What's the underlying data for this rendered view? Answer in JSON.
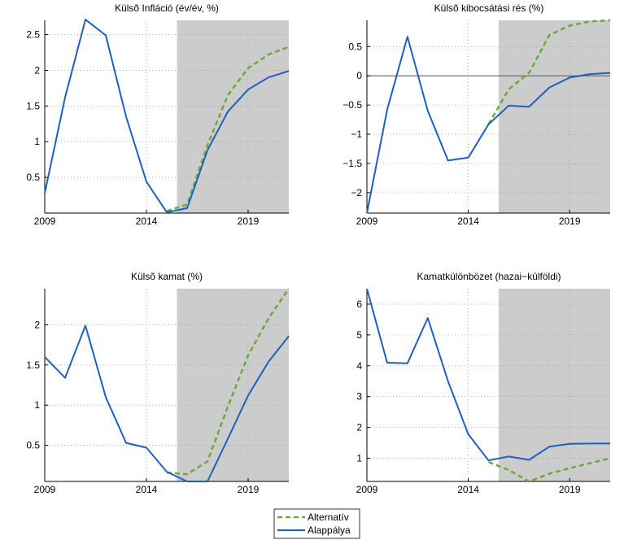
{
  "chart_data": [
    {
      "type": "line",
      "title": "Külsõ Infláció (év/év, %)",
      "xlim": [
        2009,
        2021
      ],
      "ylim": [
        0.0,
        2.7
      ],
      "xticks": [
        2009,
        2014,
        2019
      ],
      "yticks": [
        0.5,
        1,
        1.5,
        2,
        2.5
      ],
      "yticklabels": [
        "0.5",
        "1",
        "1.5",
        "2",
        "2.5"
      ],
      "forecast_start": 2015.5,
      "zero_line": false,
      "series": [
        {
          "name": "Alternatív",
          "color": "#6aaa3a",
          "dashed": true,
          "x": [
            2015,
            2016,
            2017,
            2018,
            2019,
            2020,
            2021
          ],
          "y": [
            0.03,
            0.12,
            0.95,
            1.65,
            2.03,
            2.22,
            2.33
          ]
        },
        {
          "name": "Alappálya",
          "color": "#1f5fbf",
          "dashed": false,
          "x": [
            2009,
            2010,
            2011,
            2012,
            2013,
            2014,
            2015,
            2016,
            2017,
            2018,
            2019,
            2020,
            2021
          ],
          "y": [
            0.28,
            1.62,
            2.71,
            2.49,
            1.35,
            0.44,
            0.01,
            0.07,
            0.88,
            1.42,
            1.73,
            1.9,
            1.99
          ]
        }
      ]
    },
    {
      "type": "line",
      "title": "Külsõ kibocsátási rés (%)",
      "xlim": [
        2009,
        2021
      ],
      "ylim": [
        -2.35,
        0.95
      ],
      "xticks": [
        2009,
        2014,
        2019
      ],
      "yticks": [
        -2,
        -1.5,
        -1,
        -0.5,
        0,
        0.5
      ],
      "yticklabels": [
        "−2",
        "−1.5",
        "−1",
        "−0.5",
        "0",
        "0.5"
      ],
      "forecast_start": 2015.5,
      "zero_line": true,
      "series": [
        {
          "name": "Alternatív",
          "color": "#6aaa3a",
          "dashed": true,
          "x": [
            2015,
            2016,
            2017,
            2018,
            2019,
            2020,
            2021
          ],
          "y": [
            -0.83,
            -0.23,
            0.05,
            0.7,
            0.86,
            0.93,
            0.95
          ]
        },
        {
          "name": "Alappálya",
          "color": "#1f5fbf",
          "dashed": false,
          "x": [
            2009,
            2010,
            2011,
            2012,
            2013,
            2014,
            2015,
            2016,
            2017,
            2018,
            2019,
            2020,
            2021
          ],
          "y": [
            -2.35,
            -0.58,
            0.67,
            -0.6,
            -1.45,
            -1.4,
            -0.83,
            -0.51,
            -0.53,
            -0.2,
            -0.03,
            0.03,
            0.05
          ]
        }
      ]
    },
    {
      "type": "line",
      "title": "Külsõ kamat (%)",
      "xlim": [
        2009,
        2021
      ],
      "ylim": [
        0.05,
        2.45
      ],
      "xticks": [
        2009,
        2014,
        2019
      ],
      "yticks": [
        0.5,
        1,
        1.5,
        2
      ],
      "yticklabels": [
        "0.5",
        "1",
        "1.5",
        "2"
      ],
      "forecast_start": 2015.5,
      "zero_line": false,
      "series": [
        {
          "name": "Alternatív",
          "color": "#6aaa3a",
          "dashed": true,
          "x": [
            2015,
            2016,
            2017,
            2018,
            2019,
            2020,
            2021
          ],
          "y": [
            0.16,
            0.14,
            0.3,
            0.98,
            1.62,
            2.08,
            2.45
          ]
        },
        {
          "name": "Alappálya",
          "color": "#1f5fbf",
          "dashed": false,
          "x": [
            2009,
            2010,
            2011,
            2012,
            2013,
            2014,
            2015,
            2016,
            2017,
            2018,
            2019,
            2020,
            2021
          ],
          "y": [
            1.6,
            1.34,
            1.99,
            1.1,
            0.53,
            0.47,
            0.17,
            0.05,
            0.05,
            0.58,
            1.12,
            1.54,
            1.86
          ]
        }
      ]
    },
    {
      "type": "line",
      "title": "Kamatkülönbözet (hazai−külföldi)",
      "xlim": [
        2009,
        2021
      ],
      "ylim": [
        0.25,
        6.5
      ],
      "xticks": [
        2009,
        2014,
        2019
      ],
      "yticks": [
        1,
        2,
        3,
        4,
        5,
        6
      ],
      "yticklabels": [
        "1",
        "2",
        "3",
        "4",
        "5",
        "6"
      ],
      "forecast_start": 2015.5,
      "zero_line": false,
      "series": [
        {
          "name": "Alternatív",
          "color": "#6aaa3a",
          "dashed": true,
          "x": [
            2015,
            2016,
            2017,
            2018,
            2019,
            2020,
            2021
          ],
          "y": [
            0.88,
            0.62,
            0.25,
            0.5,
            0.68,
            0.84,
            1.0
          ]
        },
        {
          "name": "Alappálya",
          "color": "#1f5fbf",
          "dashed": false,
          "x": [
            2009,
            2010,
            2011,
            2012,
            2013,
            2014,
            2015,
            2016,
            2017,
            2018,
            2019,
            2020,
            2021
          ],
          "y": [
            6.5,
            4.1,
            4.08,
            5.55,
            3.5,
            1.78,
            0.93,
            1.06,
            0.95,
            1.38,
            1.47,
            1.48,
            1.48
          ]
        }
      ]
    }
  ],
  "legend": {
    "placement": "bottom-center",
    "items": [
      {
        "label": "Alternatív",
        "color": "#6aaa3a",
        "dashed": true
      },
      {
        "label": "Alappálya",
        "color": "#1f5fbf",
        "dashed": false
      }
    ]
  }
}
